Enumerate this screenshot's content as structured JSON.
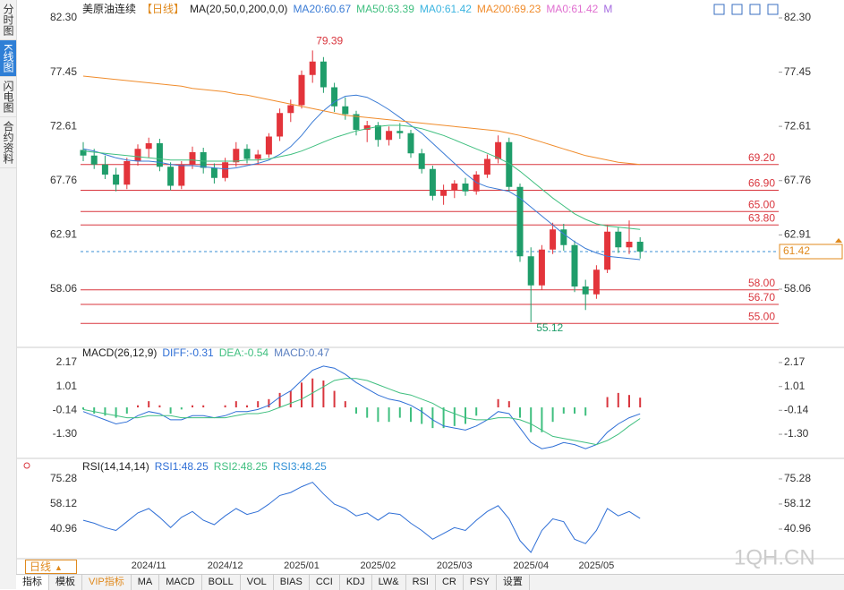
{
  "sidebar": [
    "分时图",
    "K线图",
    "闪电图",
    "合约资料"
  ],
  "toolbar": {
    "period": "日线",
    "tabs": [
      "指标",
      "模板",
      "VIP指标",
      "MA",
      "MACD",
      "BOLL",
      "VOL",
      "BIAS",
      "CCI",
      "KDJ",
      "LW&",
      "RSI",
      "CR",
      "PSY",
      "设置"
    ]
  },
  "watermark": "1QH.CN",
  "chart_data": [
    {
      "type": "candlestick",
      "title": "美原油连续",
      "period": "【日线】",
      "indicator": "MA(20,50,0,200,0,0)",
      "up_color": "#e3343b",
      "down_color": "#1f9d6a",
      "categories": [
        null,
        null,
        null,
        null,
        null,
        null,
        "2024/11",
        null,
        null,
        null,
        null,
        null,
        null,
        "2024/12",
        null,
        null,
        null,
        null,
        null,
        null,
        "2025/01",
        null,
        null,
        null,
        null,
        null,
        null,
        "2025/02",
        null,
        null,
        null,
        null,
        null,
        null,
        "2025/03",
        null,
        null,
        null,
        null,
        null,
        null,
        "2025/04",
        null,
        null,
        null,
        null,
        null,
        "2025/05",
        null,
        null,
        null,
        null
      ],
      "candles": [
        [
          70.5,
          71.2,
          69.5,
          70.0
        ],
        [
          70.0,
          70.6,
          68.8,
          69.2
        ],
        [
          69.2,
          70.0,
          67.9,
          68.3
        ],
        [
          68.3,
          68.9,
          66.8,
          67.4
        ],
        [
          67.4,
          69.8,
          67.0,
          69.5
        ],
        [
          69.5,
          71.0,
          69.1,
          70.6
        ],
        [
          70.6,
          71.6,
          69.8,
          71.1
        ],
        [
          71.1,
          71.5,
          68.6,
          69.0
        ],
        [
          69.0,
          69.4,
          66.9,
          67.3
        ],
        [
          67.3,
          69.5,
          67.0,
          69.2
        ],
        [
          69.2,
          70.8,
          68.8,
          70.3
        ],
        [
          70.3,
          70.7,
          68.4,
          68.9
        ],
        [
          68.9,
          69.3,
          67.5,
          68.0
        ],
        [
          68.0,
          69.8,
          67.7,
          69.4
        ],
        [
          69.4,
          71.2,
          69.0,
          70.6
        ],
        [
          70.6,
          71.0,
          69.3,
          69.7
        ],
        [
          69.7,
          70.5,
          69.2,
          70.1
        ],
        [
          70.1,
          72.0,
          69.8,
          71.7
        ],
        [
          71.7,
          74.2,
          71.3,
          73.8
        ],
        [
          73.8,
          75.0,
          73.0,
          74.5
        ],
        [
          74.5,
          77.6,
          74.2,
          77.2
        ],
        [
          77.2,
          79.39,
          76.5,
          78.4
        ],
        [
          78.4,
          78.8,
          75.6,
          76.1
        ],
        [
          76.1,
          76.5,
          73.9,
          74.4
        ],
        [
          74.4,
          75.2,
          73.2,
          73.7
        ],
        [
          73.7,
          74.0,
          71.8,
          72.3
        ],
        [
          72.3,
          73.1,
          71.2,
          72.7
        ],
        [
          72.7,
          73.0,
          70.8,
          71.4
        ],
        [
          71.4,
          72.6,
          70.9,
          72.2
        ],
        [
          72.2,
          72.9,
          71.5,
          72.0
        ],
        [
          72.0,
          72.3,
          69.8,
          70.2
        ],
        [
          70.2,
          70.6,
          68.4,
          68.8
        ],
        [
          68.8,
          69.1,
          66.0,
          66.4
        ],
        [
          66.4,
          67.4,
          65.6,
          66.9
        ],
        [
          66.9,
          67.8,
          66.2,
          67.5
        ],
        [
          67.5,
          68.0,
          66.4,
          66.8
        ],
        [
          66.8,
          68.6,
          66.5,
          68.3
        ],
        [
          68.3,
          70.1,
          68.0,
          69.7
        ],
        [
          69.7,
          71.8,
          69.3,
          71.2
        ],
        [
          71.2,
          71.6,
          66.8,
          67.2
        ],
        [
          67.2,
          67.5,
          60.5,
          61.0
        ],
        [
          61.0,
          61.8,
          55.12,
          58.4
        ],
        [
          58.4,
          62.0,
          58.0,
          61.6
        ],
        [
          61.6,
          64.0,
          61.2,
          63.4
        ],
        [
          63.4,
          63.9,
          61.5,
          62.0
        ],
        [
          62.0,
          62.4,
          57.8,
          58.3
        ],
        [
          58.3,
          58.9,
          56.2,
          57.6
        ],
        [
          57.6,
          60.2,
          57.2,
          59.8
        ],
        [
          59.8,
          63.8,
          59.5,
          63.2
        ],
        [
          63.2,
          63.6,
          61.3,
          61.8
        ],
        [
          61.8,
          64.2,
          61.2,
          62.3
        ],
        [
          62.3,
          62.7,
          60.8,
          61.42
        ]
      ],
      "series": [
        {
          "name": "MA20:60.67",
          "color": "#3a7bd5",
          "values": [
            70.6,
            70.4,
            70.1,
            69.8,
            69.6,
            69.5,
            69.5,
            69.4,
            69.2,
            69.1,
            69.1,
            69.0,
            68.9,
            68.8,
            68.9,
            69.1,
            69.3,
            69.6,
            70.1,
            70.8,
            71.8,
            73.0,
            74.0,
            74.8,
            75.3,
            75.4,
            75.2,
            74.7,
            74.1,
            73.4,
            72.7,
            72.0,
            71.1,
            70.2,
            69.3,
            68.4,
            67.6,
            67.2,
            67.0,
            66.8,
            66.2,
            65.4,
            64.6,
            63.8,
            63.0,
            62.3,
            61.7,
            61.3,
            61.0,
            60.9,
            60.8,
            60.7
          ]
        },
        {
          "name": "MA50:63.39",
          "color": "#3fbf7f",
          "values": [
            70.4,
            70.3,
            70.2,
            70.1,
            70.0,
            69.9,
            69.8,
            69.7,
            69.6,
            69.6,
            69.6,
            69.5,
            69.5,
            69.5,
            69.5,
            69.6,
            69.6,
            69.7,
            69.9,
            70.1,
            70.4,
            70.8,
            71.2,
            71.6,
            71.9,
            72.2,
            72.4,
            72.6,
            72.7,
            72.7,
            72.6,
            72.4,
            72.1,
            71.8,
            71.4,
            71.0,
            70.6,
            70.2,
            69.8,
            69.3,
            68.6,
            67.8,
            67.0,
            66.2,
            65.5,
            64.8,
            64.3,
            63.9,
            63.7,
            63.6,
            63.5,
            63.4
          ]
        },
        {
          "name": "MA200:69.23",
          "color": "#f08c2c",
          "values": [
            77.1,
            77.0,
            76.9,
            76.8,
            76.7,
            76.6,
            76.5,
            76.4,
            76.3,
            76.2,
            76.0,
            75.9,
            75.8,
            75.7,
            75.5,
            75.4,
            75.2,
            75.0,
            74.8,
            74.6,
            74.4,
            74.2,
            74.0,
            73.8,
            73.6,
            73.5,
            73.4,
            73.3,
            73.2,
            73.1,
            73.0,
            72.9,
            72.8,
            72.7,
            72.6,
            72.5,
            72.4,
            72.3,
            72.2,
            72.0,
            71.8,
            71.5,
            71.2,
            70.9,
            70.6,
            70.3,
            70.0,
            69.8,
            69.6,
            69.4,
            69.3,
            69.2
          ]
        }
      ],
      "legend_extra": [
        {
          "text": "MA0:61.42",
          "color": "#3bb4e0"
        },
        {
          "text": "MA0:61.42",
          "color": "#e06fd0"
        },
        {
          "text": "M",
          "color": "#a56be0"
        }
      ],
      "ylim": [
        53.1,
        82.3
      ],
      "yticks": [
        {
          "value": 82.3,
          "label": "82.30"
        },
        77.45,
        72.61,
        67.76,
        62.91,
        58.06
      ],
      "levels": [
        {
          "value": 69.2,
          "label": "69.20"
        },
        {
          "value": 66.9,
          "label": "66.90"
        },
        {
          "value": 65,
          "label": "65.00"
        },
        {
          "value": 63.8,
          "label": "63.80"
        },
        {
          "value": 58,
          "label": "58.00"
        },
        {
          "value": 56.7,
          "label": "56.70"
        },
        {
          "value": 55,
          "label": "55.00"
        }
      ],
      "level_color": "#d9363e",
      "last_price": 61.42,
      "high_label": 79.39,
      "low_label": 55.12,
      "grid": false
    },
    {
      "type": "macd",
      "title": "MACD(26,12,9)",
      "series": [
        {
          "name": "DIFF:-0.31",
          "color": "#2f6fd6",
          "values": [
            -0.2,
            -0.4,
            -0.6,
            -0.8,
            -0.7,
            -0.4,
            -0.2,
            -0.3,
            -0.6,
            -0.6,
            -0.4,
            -0.4,
            -0.5,
            -0.4,
            -0.2,
            -0.2,
            -0.1,
            0.1,
            0.5,
            0.8,
            1.3,
            1.8,
            2.0,
            1.9,
            1.6,
            1.2,
            0.9,
            0.6,
            0.4,
            0.3,
            0.1,
            -0.2,
            -0.6,
            -0.9,
            -1.0,
            -1.1,
            -0.9,
            -0.6,
            -0.2,
            -0.3,
            -1.0,
            -1.7,
            -2.0,
            -1.9,
            -1.7,
            -1.8,
            -2.0,
            -1.8,
            -1.2,
            -0.8,
            -0.5,
            -0.31
          ]
        },
        {
          "name": "DEA:-0.54",
          "color": "#3fbf7f",
          "values": [
            -0.1,
            -0.2,
            -0.3,
            -0.4,
            -0.5,
            -0.5,
            -0.4,
            -0.4,
            -0.4,
            -0.5,
            -0.5,
            -0.5,
            -0.5,
            -0.5,
            -0.4,
            -0.3,
            -0.3,
            -0.2,
            0.0,
            0.2,
            0.4,
            0.7,
            1.0,
            1.3,
            1.4,
            1.4,
            1.3,
            1.1,
            0.9,
            0.7,
            0.6,
            0.4,
            0.2,
            -0.1,
            -0.3,
            -0.5,
            -0.6,
            -0.6,
            -0.5,
            -0.5,
            -0.6,
            -0.8,
            -1.1,
            -1.4,
            -1.5,
            -1.6,
            -1.7,
            -1.8,
            -1.6,
            -1.3,
            -0.9,
            -0.54
          ]
        },
        {
          "name": "MACD:0.47",
          "color": "#5a7fc0",
          "up_color": "#d9363e",
          "down_color": "#3fbf7f",
          "values": [
            -0.1,
            -0.3,
            -0.4,
            -0.5,
            -0.3,
            0.1,
            0.3,
            0.1,
            -0.3,
            -0.1,
            0.1,
            0.1,
            0,
            0.1,
            0.3,
            0.1,
            0.3,
            0.4,
            0.7,
            0.8,
            1.2,
            1.4,
            1.3,
            0.8,
            0.3,
            -0.3,
            -0.5,
            -0.7,
            -0.7,
            -0.5,
            -0.7,
            -0.8,
            -1.0,
            -1.0,
            -0.9,
            -0.8,
            -0.4,
            0,
            0.4,
            0.3,
            -0.5,
            -1.2,
            -1.2,
            -0.7,
            -0.3,
            -0.3,
            -0.4,
            0,
            0.5,
            0.7,
            0.6,
            0.47
          ]
        }
      ],
      "ylim": [
        -2.38,
        2.73
      ],
      "yticks": [
        2.17,
        1.01,
        -0.14,
        {
          "value": -1.3,
          "label": "-1.30"
        }
      ]
    },
    {
      "type": "line",
      "title": "RSI(14,14,14)",
      "series": [
        {
          "name": "RSI1:48.25",
          "color": "#2f6fd6",
          "values": [
            47,
            45,
            42,
            40,
            46,
            52,
            55,
            49,
            42,
            49,
            53,
            47,
            44,
            50,
            55,
            51,
            53,
            58,
            64,
            66,
            70,
            73,
            65,
            58,
            55,
            50,
            52,
            47,
            52,
            51,
            45,
            40,
            34,
            38,
            42,
            40,
            47,
            53,
            57,
            48,
            33,
            25,
            40,
            48,
            46,
            34,
            31,
            40,
            55,
            50,
            53,
            48.25
          ]
        }
      ],
      "legend_extra": [
        {
          "text": "RSI2:48.25",
          "color": "#3fbf7f"
        },
        {
          "text": "RSI3:48.25",
          "color": "#2f8fd6"
        }
      ],
      "ylim": [
        20.1,
        87.5
      ],
      "yticks": [
        75.28,
        58.12,
        40.96
      ]
    }
  ]
}
